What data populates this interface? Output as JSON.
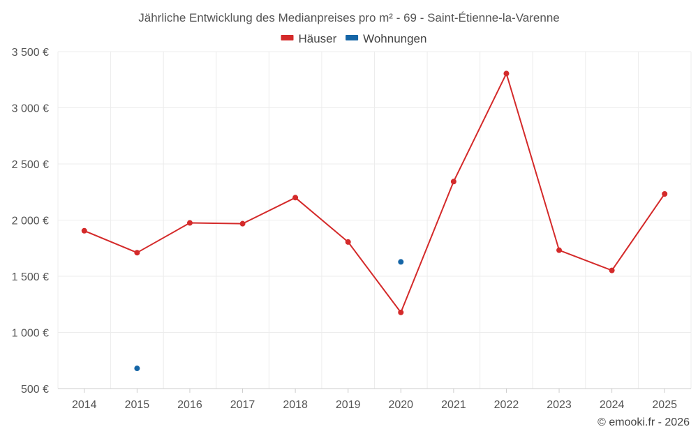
{
  "chart_data": {
    "type": "line",
    "title": "Jährliche Entwicklung des Medianpreises pro m² - 69 - Saint-Étienne-la-Varenne",
    "xlabel": "",
    "ylabel": "",
    "categories": [
      "2014",
      "2015",
      "2016",
      "2017",
      "2018",
      "2019",
      "2020",
      "2021",
      "2022",
      "2023",
      "2024",
      "2025"
    ],
    "ylim": [
      500,
      3500
    ],
    "yticks": [
      500,
      1000,
      1500,
      2000,
      2500,
      3000,
      3500
    ],
    "ytick_labels": [
      "500 €",
      "1 000 €",
      "1 500 €",
      "2 000 €",
      "2 500 €",
      "3 000 €",
      "3 500 €"
    ],
    "grid": true,
    "legend_position": "top-center",
    "series": [
      {
        "name": "Häuser",
        "color": "#d42a2a",
        "values": [
          1905,
          1710,
          1975,
          1968,
          2200,
          1805,
          1178,
          2343,
          3305,
          1732,
          1552,
          2233
        ]
      },
      {
        "name": "Wohnungen",
        "color": "#1565a6",
        "values": [
          null,
          680,
          null,
          null,
          null,
          null,
          1628,
          null,
          null,
          null,
          null,
          null
        ]
      }
    ]
  },
  "credit": "© emooki.fr - 2026"
}
